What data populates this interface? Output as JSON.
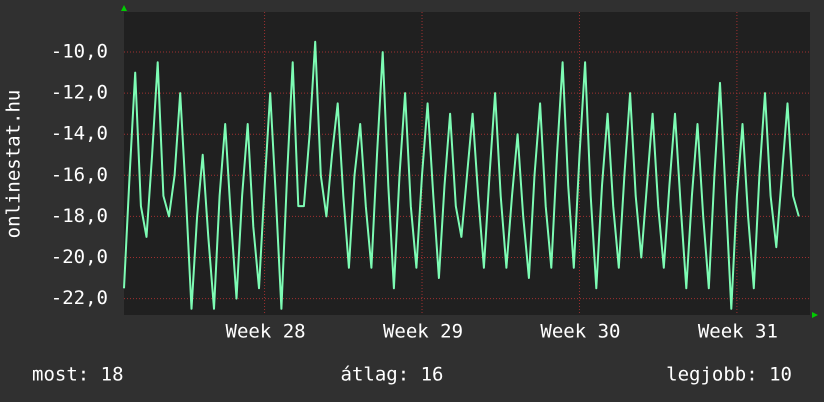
{
  "chart_data": {
    "type": "line",
    "y_label": "onlinestat.hu",
    "color": "#7dfcb4",
    "grid": true,
    "x": [
      0,
      6,
      12,
      18,
      24,
      30,
      36,
      42,
      48,
      54,
      60,
      66,
      72,
      78,
      84,
      90,
      96,
      102,
      108,
      114,
      120,
      126,
      132,
      138,
      144,
      150,
      156,
      162,
      168,
      174,
      180,
      186,
      192,
      198,
      204,
      210,
      216,
      222,
      228,
      234,
      240,
      246,
      252,
      258,
      264,
      270,
      276,
      282,
      288,
      294,
      300,
      306,
      312,
      318,
      324,
      330,
      336,
      342,
      348,
      354,
      360,
      366,
      372,
      378,
      384,
      390,
      396,
      402,
      408,
      414,
      420,
      426,
      432,
      438,
      444,
      450,
      456,
      462,
      468,
      474,
      480,
      486,
      492,
      498,
      504,
      510,
      516,
      522,
      528,
      534,
      540,
      546,
      552,
      558,
      564,
      570,
      576,
      582,
      588,
      594,
      600,
      606,
      612,
      618,
      624,
      630,
      636,
      642,
      648,
      654,
      660,
      666,
      672,
      678,
      684,
      690,
      696,
      702,
      708,
      714,
      720
    ],
    "values": [
      -21.5,
      -16,
      -11,
      -17.5,
      -19,
      -15,
      -10.5,
      -17,
      -18,
      -16,
      -12,
      -17,
      -22.5,
      -18,
      -15,
      -19,
      -22.5,
      -17,
      -13.5,
      -18,
      -22,
      -17,
      -13.5,
      -18.5,
      -21.5,
      -16.5,
      -12,
      -17,
      -22.5,
      -16,
      -10.5,
      -17.5,
      -17.5,
      -14,
      -9.5,
      -16,
      -18,
      -15,
      -12.5,
      -17,
      -20.5,
      -16,
      -13.5,
      -17.5,
      -20.5,
      -15,
      -10,
      -16.5,
      -21.5,
      -16,
      -12,
      -17.5,
      -20.5,
      -16,
      -12.5,
      -17,
      -21,
      -16.5,
      -13,
      -17.5,
      -19,
      -16,
      -13,
      -17,
      -20.5,
      -16,
      -12,
      -17,
      -20.5,
      -17,
      -14,
      -18,
      -21,
      -16,
      -12.5,
      -17.5,
      -20.5,
      -15,
      -10.5,
      -16.5,
      -20.5,
      -15,
      -10.5,
      -17,
      -21.5,
      -16.5,
      -13,
      -17.5,
      -20.5,
      -16,
      -12,
      -17,
      -20,
      -16.5,
      -13,
      -17.5,
      -20.5,
      -16.5,
      -13,
      -17.5,
      -21.5,
      -17,
      -13.5,
      -18,
      -21.5,
      -16,
      -11.5,
      -17,
      -22.5,
      -17,
      -13.5,
      -18,
      -21.5,
      -16,
      -12,
      -17,
      -19.5,
      -16,
      -12.5,
      -17,
      -18
    ],
    "xlim": [
      0,
      732
    ],
    "xticks": [
      {
        "value": 150,
        "label": "Week 28"
      },
      {
        "value": 318,
        "label": "Week 29"
      },
      {
        "value": 486,
        "label": "Week 30"
      },
      {
        "value": 654,
        "label": "Week 31"
      }
    ],
    "ylim": [
      -22.8,
      -8.05
    ],
    "yticks": [
      {
        "value": -10,
        "label": "-10,0"
      },
      {
        "value": -12,
        "label": "-12,0"
      },
      {
        "value": -14,
        "label": "-14,0"
      },
      {
        "value": -16,
        "label": "-16,0"
      },
      {
        "value": -18,
        "label": "-18,0"
      },
      {
        "value": -20,
        "label": "-20,0"
      },
      {
        "value": -22,
        "label": "-22,0"
      }
    ]
  },
  "footer": {
    "current": "most: 18",
    "average": "átlag: 16",
    "best": "legjobb: 10"
  }
}
